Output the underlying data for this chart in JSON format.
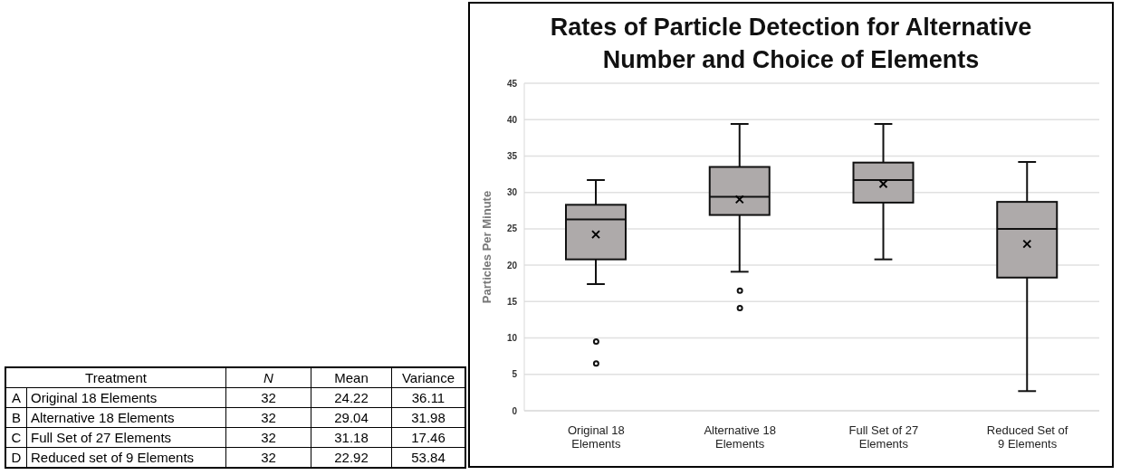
{
  "chart_data": [
    {
      "type": "other",
      "annotations": [
        "Treatment",
        "N",
        "Mean",
        "Variance",
        "A",
        "Original 18 Elements",
        "32",
        "24.22",
        "36.11",
        "B",
        "Alternative 18 Elements",
        "32",
        "29.04",
        "31.98",
        "C",
        "Full Set of 27 Elements",
        "32",
        "31.18",
        "17.46",
        "D",
        "Reduced set of 9 Elements",
        "32",
        "22.92",
        "53.84"
      ]
    },
    {
      "type": "box",
      "title": "Rates of Particle Detection for Alternative Number and Choice of Elements",
      "ylabel": "Particles Per Minute",
      "categories": [
        "Original 18 Elements",
        "Alternative 18 Elements",
        "Full Set of 27 Elements",
        "Reduced Set of 9 Elements"
      ],
      "boxes": [
        {
          "low": 17.4,
          "q1": 20.8,
          "median": 26.3,
          "q3": 28.3,
          "high": 31.7,
          "mean": 24.22,
          "outliers": [
            9.5,
            6.5
          ]
        },
        {
          "low": 19.1,
          "q1": 26.9,
          "median": 29.4,
          "q3": 33.5,
          "high": 39.4,
          "mean": 29.04,
          "outliers": [
            16.5,
            14.1
          ]
        },
        {
          "low": 20.8,
          "q1": 28.6,
          "median": 31.7,
          "q3": 34.1,
          "high": 39.4,
          "mean": 31.18
        },
        {
          "low": 2.7,
          "q1": 18.3,
          "median": 25.0,
          "q3": 28.7,
          "high": 34.2,
          "mean": 22.92
        }
      ],
      "color": "#aeaaaa",
      "ylim": [
        0,
        45
      ],
      "yticks": [
        0,
        5,
        10,
        15,
        20,
        25,
        30,
        35,
        40,
        45
      ],
      "grid": "y",
      "legend": false
    }
  ]
}
